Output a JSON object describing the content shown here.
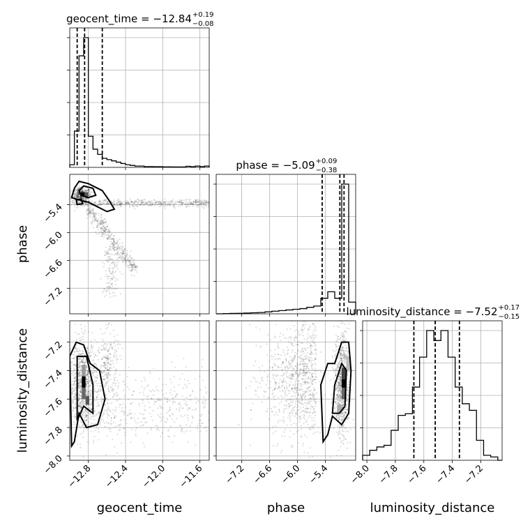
{
  "chart_data": {
    "type": "corner",
    "parameters": [
      "geocent_time",
      "phase",
      "luminosity_distance"
    ],
    "ranges": {
      "geocent_time": [
        -13.0,
        -11.5
      ],
      "phase": [
        -7.75,
        -4.75
      ],
      "luminosity_distance": [
        -8.03,
        -7.05
      ]
    },
    "ticks": {
      "geocent_time": [
        -12.8,
        -12.4,
        -12.0,
        -11.6
      ],
      "phase": [
        -7.2,
        -6.6,
        -6.0,
        -5.4
      ],
      "luminosity_distance": [
        -8.0,
        -7.8,
        -7.6,
        -7.4,
        -7.2
      ]
    },
    "tick_labels": {
      "geocent_time": [
        "−12.8",
        "−12.4",
        "−12.0",
        "−11.6"
      ],
      "phase": [
        "−7.2",
        "−6.6",
        "−6.0",
        "−5.4"
      ],
      "luminosity_distance": [
        "−8.0",
        "−7.8",
        "−7.6",
        "−7.4",
        "−7.2"
      ]
    },
    "titles": [
      {
        "param": "geocent_time",
        "main": "geocent_time = −12.84",
        "sup": "+0.19",
        "sub": "−0.08"
      },
      {
        "param": "phase",
        "main": "phase = −5.09",
        "sup": "+0.09",
        "sub": "−0.38"
      },
      {
        "param": "luminosity_distance",
        "main": "luminosity_distance = −7.52",
        "sup": "+0.17",
        "sub": "−0.15"
      }
    ],
    "quantiles": {
      "geocent_time": [
        -12.92,
        -12.84,
        -12.65
      ],
      "phase": [
        -5.47,
        -5.09,
        -5.0
      ],
      "luminosity_distance": [
        -7.67,
        -7.52,
        -7.35
      ]
    },
    "histograms": {
      "geocent_time": {
        "edges": [
          -13.0,
          -12.95,
          -12.9,
          -12.85,
          -12.8,
          -12.75,
          -12.7,
          -12.65,
          -12.6,
          -12.55,
          -12.5,
          -12.45,
          -12.4,
          -12.35,
          -12.3,
          -12.25,
          -12.2,
          -12.15,
          -12.1,
          -12.05,
          -12.0,
          -11.95,
          -11.9,
          -11.85,
          -11.8,
          -11.75,
          -11.7,
          -11.65,
          -11.6,
          -11.55,
          -11.5
        ],
        "counts": [
          0.02,
          0.28,
          0.86,
          1.0,
          0.24,
          0.14,
          0.1,
          0.07,
          0.06,
          0.05,
          0.04,
          0.03,
          0.02,
          0.015,
          0.01,
          0.01,
          0.006,
          0.006,
          0.005,
          0.005,
          0.004,
          0.004,
          0.003,
          0.003,
          0.003,
          0.008,
          0.005,
          0.01,
          0.006,
          0.01
        ]
      },
      "phase": {
        "edges": [
          -7.75,
          -7.6,
          -7.45,
          -7.3,
          -7.15,
          -7.0,
          -6.85,
          -6.7,
          -6.55,
          -6.4,
          -6.25,
          -6.1,
          -5.95,
          -5.8,
          -5.65,
          -5.5,
          -5.35,
          -5.2,
          -5.05,
          -4.9,
          -4.75
        ],
        "counts": [
          0.0,
          0.002,
          0.003,
          0.004,
          0.006,
          0.008,
          0.01,
          0.015,
          0.02,
          0.025,
          0.03,
          0.035,
          0.04,
          0.05,
          0.06,
          0.12,
          0.17,
          0.12,
          1.0,
          0.09
        ]
      },
      "luminosity_distance": {
        "edges": [
          -8.03,
          -7.98,
          -7.93,
          -7.88,
          -7.83,
          -7.78,
          -7.73,
          -7.68,
          -7.63,
          -7.58,
          -7.53,
          -7.48,
          -7.43,
          -7.38,
          -7.33,
          -7.28,
          -7.23,
          -7.18,
          -7.13,
          -7.08,
          -7.05
        ],
        "counts": [
          0.03,
          0.06,
          0.08,
          0.09,
          0.18,
          0.27,
          0.28,
          0.44,
          0.62,
          0.78,
          0.72,
          0.78,
          0.62,
          0.44,
          0.34,
          0.3,
          0.12,
          0.03,
          0.02,
          0.0
        ]
      }
    }
  }
}
